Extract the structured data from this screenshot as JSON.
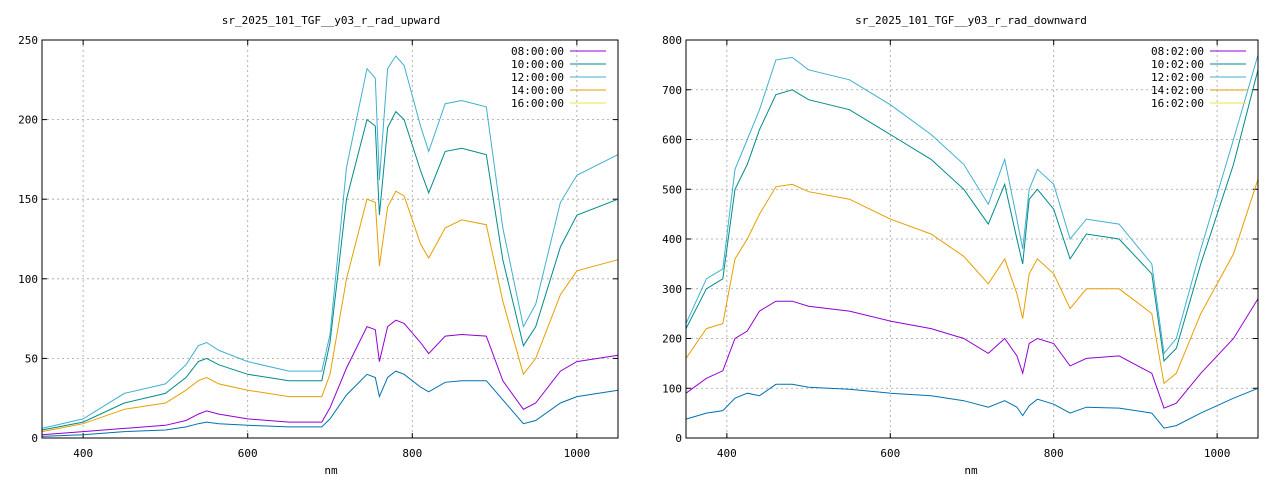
{
  "chart_data": [
    {
      "type": "line",
      "title": "sr_2025_101_TGF__y03_r_rad_upward",
      "xlabel": "nm",
      "ylabel": "",
      "xlim": [
        350,
        1050
      ],
      "ylim": [
        0,
        250
      ],
      "xticks": [
        400,
        600,
        800,
        1000
      ],
      "yticks": [
        0,
        50,
        100,
        150,
        200,
        250
      ],
      "grid": true,
      "legend_position": "top-right",
      "series": [
        {
          "name": "08:00:00",
          "color": "#9400d3",
          "x": [
            350,
            400,
            450,
            500,
            525,
            540,
            550,
            565,
            600,
            650,
            690,
            700,
            720,
            745,
            755,
            760,
            770,
            780,
            790,
            810,
            820,
            840,
            860,
            890,
            910,
            935,
            950,
            980,
            1000,
            1050
          ],
          "y": [
            2,
            4,
            6,
            8,
            11,
            15,
            17,
            15,
            12,
            10,
            10,
            19,
            44,
            70,
            68,
            48,
            70,
            74,
            72,
            60,
            53,
            64,
            65,
            64,
            36,
            18,
            22,
            42,
            48,
            52
          ]
        },
        {
          "name": "10:00:00",
          "color": "#008b8b",
          "x": [
            350,
            400,
            450,
            500,
            525,
            540,
            550,
            565,
            600,
            650,
            690,
            700,
            720,
            745,
            755,
            760,
            770,
            780,
            790,
            810,
            820,
            840,
            860,
            890,
            910,
            935,
            950,
            980,
            1000,
            1050
          ],
          "y": [
            5,
            10,
            22,
            28,
            38,
            48,
            50,
            46,
            40,
            36,
            36,
            60,
            150,
            200,
            196,
            140,
            195,
            205,
            200,
            168,
            154,
            180,
            182,
            178,
            112,
            58,
            70,
            120,
            140,
            150
          ]
        },
        {
          "name": "12:00:00",
          "color": "#40b0d0",
          "x": [
            350,
            400,
            450,
            500,
            525,
            540,
            550,
            565,
            600,
            650,
            690,
            700,
            720,
            745,
            755,
            760,
            770,
            780,
            790,
            810,
            820,
            840,
            860,
            890,
            910,
            935,
            950,
            980,
            1000,
            1050
          ],
          "y": [
            6,
            12,
            28,
            34,
            46,
            58,
            60,
            55,
            48,
            42,
            42,
            65,
            170,
            232,
            226,
            162,
            232,
            240,
            234,
            196,
            180,
            210,
            212,
            208,
            132,
            70,
            84,
            148,
            165,
            178
          ]
        },
        {
          "name": "14:00:00",
          "color": "#e69f00",
          "x": [
            350,
            400,
            450,
            500,
            525,
            540,
            550,
            565,
            600,
            650,
            690,
            700,
            720,
            745,
            755,
            760,
            770,
            780,
            790,
            810,
            820,
            840,
            860,
            890,
            910,
            935,
            950,
            980,
            1000,
            1050
          ],
          "y": [
            4,
            9,
            18,
            22,
            30,
            36,
            38,
            34,
            30,
            26,
            26,
            40,
            100,
            150,
            148,
            108,
            145,
            155,
            152,
            122,
            113,
            132,
            137,
            134,
            86,
            40,
            50,
            90,
            105,
            112
          ]
        },
        {
          "name": "16:00:00",
          "color": "#f0e442",
          "x": [
            350,
            1050
          ],
          "y": [
            0,
            0
          ]
        },
        {
          "name": "",
          "color": "#0072b2",
          "x": [
            350,
            400,
            450,
            500,
            525,
            540,
            550,
            565,
            600,
            650,
            690,
            700,
            720,
            745,
            755,
            760,
            770,
            780,
            790,
            810,
            820,
            840,
            860,
            890,
            910,
            935,
            950,
            980,
            1000,
            1050
          ],
          "y": [
            1,
            2,
            4,
            5,
            7,
            9,
            10,
            9,
            8,
            7,
            7,
            12,
            27,
            40,
            38,
            26,
            38,
            42,
            40,
            32,
            29,
            35,
            36,
            36,
            24,
            9,
            11,
            22,
            26,
            30
          ]
        }
      ]
    },
    {
      "type": "line",
      "title": "sr_2025_101_TGF__y03_r_rad_downward",
      "xlabel": "nm",
      "ylabel": "",
      "xlim": [
        350,
        1050
      ],
      "ylim": [
        0,
        800
      ],
      "xticks": [
        400,
        600,
        800,
        1000
      ],
      "yticks": [
        0,
        100,
        200,
        300,
        400,
        500,
        600,
        700,
        800
      ],
      "grid": true,
      "legend_position": "top-right",
      "series": [
        {
          "name": "08:02:00",
          "color": "#9400d3",
          "x": [
            350,
            375,
            395,
            410,
            425,
            440,
            460,
            480,
            500,
            550,
            600,
            650,
            690,
            720,
            740,
            755,
            762,
            770,
            780,
            800,
            820,
            840,
            880,
            920,
            935,
            950,
            980,
            1020,
            1050
          ],
          "y": [
            90,
            120,
            135,
            200,
            215,
            255,
            275,
            275,
            265,
            255,
            235,
            220,
            200,
            170,
            200,
            165,
            130,
            190,
            200,
            190,
            145,
            160,
            165,
            130,
            60,
            70,
            130,
            200,
            280
          ]
        },
        {
          "name": "10:02:00",
          "color": "#008b8b",
          "x": [
            350,
            375,
            395,
            410,
            425,
            440,
            460,
            480,
            500,
            550,
            600,
            650,
            690,
            720,
            740,
            755,
            762,
            770,
            780,
            800,
            820,
            840,
            880,
            920,
            935,
            950,
            980,
            1020,
            1050
          ],
          "y": [
            220,
            300,
            320,
            500,
            550,
            620,
            690,
            700,
            680,
            660,
            610,
            560,
            500,
            430,
            510,
            400,
            350,
            480,
            500,
            460,
            360,
            410,
            400,
            330,
            155,
            180,
            350,
            550,
            740
          ]
        },
        {
          "name": "12:02:00",
          "color": "#40b0d0",
          "x": [
            350,
            375,
            395,
            410,
            425,
            440,
            460,
            480,
            500,
            550,
            600,
            650,
            690,
            720,
            740,
            755,
            762,
            770,
            780,
            800,
            820,
            840,
            880,
            920,
            935,
            950,
            980,
            1020,
            1050
          ],
          "y": [
            230,
            320,
            340,
            540,
            600,
            660,
            760,
            765,
            740,
            720,
            670,
            610,
            550,
            470,
            560,
            440,
            380,
            500,
            540,
            510,
            400,
            440,
            430,
            350,
            170,
            200,
            380,
            600,
            770
          ]
        },
        {
          "name": "14:02:00",
          "color": "#e69f00",
          "x": [
            350,
            375,
            395,
            410,
            425,
            440,
            460,
            480,
            500,
            550,
            600,
            650,
            690,
            720,
            740,
            755,
            762,
            770,
            780,
            800,
            820,
            840,
            880,
            920,
            935,
            950,
            980,
            1020,
            1050
          ],
          "y": [
            160,
            220,
            230,
            360,
            400,
            450,
            505,
            510,
            495,
            480,
            440,
            410,
            365,
            310,
            360,
            290,
            240,
            330,
            360,
            330,
            260,
            300,
            300,
            250,
            110,
            130,
            250,
            370,
            520
          ]
        },
        {
          "name": "16:02:00",
          "color": "#f0e442",
          "x": [
            350,
            1050
          ],
          "y": [
            0,
            0
          ]
        },
        {
          "name": "",
          "color": "#0072b2",
          "x": [
            350,
            375,
            395,
            410,
            425,
            440,
            460,
            480,
            500,
            550,
            600,
            650,
            690,
            720,
            740,
            755,
            762,
            770,
            780,
            800,
            820,
            840,
            880,
            920,
            935,
            950,
            980,
            1020,
            1050
          ],
          "y": [
            38,
            50,
            55,
            80,
            90,
            85,
            108,
            108,
            102,
            98,
            90,
            85,
            75,
            62,
            75,
            62,
            45,
            65,
            78,
            68,
            50,
            62,
            60,
            50,
            20,
            25,
            50,
            80,
            100
          ]
        }
      ]
    }
  ]
}
